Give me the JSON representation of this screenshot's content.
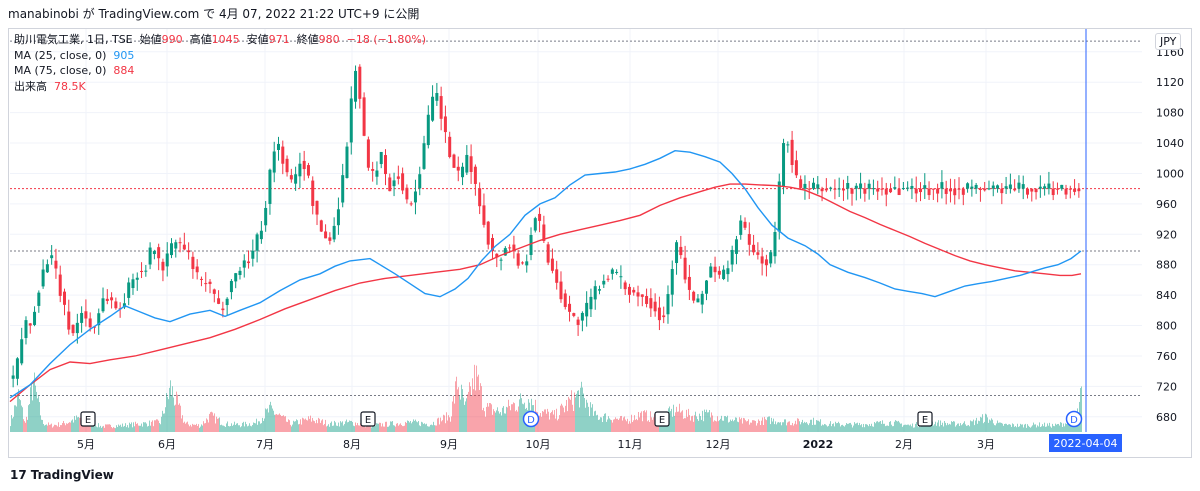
{
  "header": {
    "attribution": "manabinobi が TradingView.com で 4月 07, 2022 21:22 UTC+9 に公開"
  },
  "legend": {
    "symbol": "助川電気工業, 1日, TSE",
    "open_label": "始値",
    "open": "990",
    "high_label": "高値",
    "high": "1045",
    "low_label": "安値",
    "low": "971",
    "close_label": "終値",
    "close": "980",
    "change": "−18 (−1.80%)",
    "ma25_label": "MA (25, close, 0)",
    "ma25_value": "905",
    "ma75_label": "MA (75, close, 0)",
    "ma75_value": "884",
    "volume_label": "出来高",
    "volume_value": "78.5K"
  },
  "currency": "JPY",
  "footer": {
    "brand": "TradingView"
  },
  "colors": {
    "up": "#089981",
    "down": "#f23645",
    "ma25": "#2196f3",
    "ma75": "#f23645",
    "crosshair": "#2962ff",
    "grid": "#f0f3fa"
  },
  "chart_data": {
    "type": "candlestick",
    "ylim": [
      660,
      1190
    ],
    "y_ticks": [
      680,
      720,
      760,
      800,
      840,
      880,
      920,
      960,
      1000,
      1040,
      1080,
      1120,
      1160
    ],
    "x_labels": [
      "5月",
      "6月",
      "7月",
      "8月",
      "9月",
      "10月",
      "11月",
      "12月",
      "2022",
      "2月",
      "3月"
    ],
    "cursor_date": "2022-04-04",
    "reference_lines": [
      1174,
      980,
      898,
      708
    ],
    "event_markers": [
      {
        "label": "E",
        "kind": "earnings"
      },
      {
        "label": "E",
        "kind": "earnings"
      },
      {
        "label": "D",
        "kind": "dividend"
      },
      {
        "label": "E",
        "kind": "earnings"
      },
      {
        "label": "E",
        "kind": "earnings"
      },
      {
        "label": "D",
        "kind": "dividend"
      }
    ],
    "price_anchors": [
      [
        0,
        730
      ],
      [
        4,
        748
      ],
      [
        8,
        780
      ],
      [
        12,
        805
      ],
      [
        16,
        795
      ],
      [
        20,
        815
      ],
      [
        24,
        845
      ],
      [
        28,
        860
      ],
      [
        32,
        880
      ],
      [
        36,
        895
      ],
      [
        40,
        880
      ],
      [
        44,
        862
      ],
      [
        48,
        840
      ],
      [
        52,
        815
      ],
      [
        56,
        800
      ],
      [
        60,
        790
      ],
      [
        64,
        802
      ],
      [
        68,
        820
      ],
      [
        72,
        812
      ],
      [
        76,
        800
      ],
      [
        80,
        795
      ],
      [
        84,
        810
      ],
      [
        88,
        830
      ],
      [
        92,
        840
      ],
      [
        96,
        835
      ],
      [
        100,
        830
      ],
      [
        104,
        820
      ],
      [
        108,
        825
      ],
      [
        112,
        838
      ],
      [
        116,
        850
      ],
      [
        120,
        860
      ],
      [
        124,
        872
      ],
      [
        128,
        870
      ],
      [
        132,
        878
      ],
      [
        136,
        888
      ],
      [
        140,
        908
      ],
      [
        144,
        895
      ],
      [
        148,
        870
      ],
      [
        152,
        885
      ],
      [
        156,
        898
      ],
      [
        160,
        903
      ],
      [
        164,
        912
      ],
      [
        168,
        905
      ],
      [
        172,
        898
      ],
      [
        176,
        890
      ],
      [
        180,
        878
      ],
      [
        184,
        862
      ],
      [
        188,
        855
      ],
      [
        192,
        860
      ],
      [
        196,
        850
      ],
      [
        200,
        842
      ],
      [
        204,
        826
      ],
      [
        208,
        818
      ],
      [
        212,
        835
      ],
      [
        216,
        850
      ],
      [
        220,
        862
      ],
      [
        224,
        868
      ],
      [
        228,
        878
      ],
      [
        232,
        885
      ],
      [
        236,
        888
      ],
      [
        240,
        898
      ],
      [
        244,
        912
      ],
      [
        248,
        928
      ],
      [
        252,
        950
      ],
      [
        256,
        990
      ],
      [
        260,
        1025
      ],
      [
        264,
        1040
      ],
      [
        268,
        1030
      ],
      [
        272,
        1010
      ],
      [
        276,
        990
      ],
      [
        280,
        985
      ],
      [
        284,
        1000
      ],
      [
        288,
        1020
      ],
      [
        292,
        1010
      ],
      [
        296,
        990
      ],
      [
        300,
        965
      ],
      [
        304,
        940
      ],
      [
        308,
        925
      ],
      [
        312,
        918
      ],
      [
        316,
        910
      ],
      [
        320,
        920
      ],
      [
        324,
        950
      ],
      [
        328,
        975
      ],
      [
        332,
        1010
      ],
      [
        336,
        1060
      ],
      [
        340,
        1110
      ],
      [
        344,
        1150
      ],
      [
        348,
        1090
      ],
      [
        352,
        1040
      ],
      [
        356,
        1005
      ],
      [
        360,
        995
      ],
      [
        364,
        1010
      ],
      [
        368,
        1030
      ],
      [
        372,
        1000
      ],
      [
        376,
        980
      ],
      [
        380,
        990
      ],
      [
        384,
        1005
      ],
      [
        388,
        995
      ],
      [
        392,
        970
      ],
      [
        396,
        955
      ],
      [
        400,
        965
      ],
      [
        404,
        985
      ],
      [
        408,
        1010
      ],
      [
        412,
        1040
      ],
      [
        416,
        1070
      ],
      [
        420,
        1095
      ],
      [
        424,
        1105
      ],
      [
        428,
        1080
      ],
      [
        432,
        1055
      ],
      [
        436,
        1030
      ],
      [
        440,
        1015
      ],
      [
        444,
        1000
      ],
      [
        448,
        990
      ],
      [
        452,
        1010
      ],
      [
        456,
        1030
      ],
      [
        460,
        1000
      ],
      [
        464,
        975
      ],
      [
        468,
        955
      ],
      [
        472,
        935
      ],
      [
        476,
        915
      ],
      [
        480,
        895
      ],
      [
        484,
        885
      ],
      [
        488,
        890
      ],
      [
        492,
        900
      ],
      [
        496,
        910
      ],
      [
        500,
        900
      ],
      [
        504,
        888
      ],
      [
        508,
        878
      ],
      [
        512,
        880
      ],
      [
        516,
        900
      ],
      [
        520,
        935
      ],
      [
        524,
        950
      ],
      [
        528,
        930
      ],
      [
        532,
        905
      ],
      [
        536,
        888
      ],
      [
        540,
        875
      ],
      [
        544,
        860
      ],
      [
        548,
        845
      ],
      [
        552,
        832
      ],
      [
        556,
        820
      ],
      [
        560,
        810
      ],
      [
        564,
        805
      ],
      [
        568,
        808
      ],
      [
        572,
        815
      ],
      [
        576,
        825
      ],
      [
        580,
        838
      ],
      [
        584,
        848
      ],
      [
        588,
        855
      ],
      [
        592,
        862
      ],
      [
        596,
        868
      ],
      [
        600,
        870
      ],
      [
        604,
        865
      ],
      [
        608,
        858
      ],
      [
        612,
        852
      ],
      [
        616,
        848
      ],
      [
        620,
        845
      ],
      [
        624,
        842
      ],
      [
        628,
        840
      ],
      [
        632,
        838
      ],
      [
        636,
        835
      ],
      [
        640,
        830
      ],
      [
        644,
        822
      ],
      [
        648,
        812
      ],
      [
        652,
        815
      ],
      [
        656,
        840
      ],
      [
        660,
        880
      ],
      [
        664,
        905
      ],
      [
        668,
        895
      ],
      [
        672,
        870
      ],
      [
        676,
        850
      ],
      [
        680,
        835
      ],
      [
        684,
        825
      ],
      [
        688,
        830
      ],
      [
        692,
        850
      ],
      [
        696,
        870
      ],
      [
        700,
        880
      ],
      [
        704,
        870
      ],
      [
        708,
        860
      ],
      [
        712,
        868
      ],
      [
        716,
        880
      ],
      [
        720,
        892
      ],
      [
        724,
        915
      ],
      [
        728,
        940
      ],
      [
        732,
        925
      ],
      [
        736,
        910
      ],
      [
        740,
        900
      ],
      [
        744,
        892
      ],
      [
        748,
        890
      ],
      [
        752,
        885
      ],
      [
        756,
        880
      ],
      [
        760,
        895
      ],
      [
        764,
        930
      ],
      [
        768,
        990
      ],
      [
        772,
        1040
      ],
      [
        776,
        1045
      ],
      [
        780,
        1020
      ],
      [
        784,
        995
      ],
      [
        788,
        980
      ]
    ],
    "ma25_anchors": [
      [
        0,
        705
      ],
      [
        20,
        722
      ],
      [
        40,
        750
      ],
      [
        60,
        775
      ],
      [
        80,
        795
      ],
      [
        100,
        812
      ],
      [
        115,
        826
      ],
      [
        130,
        818
      ],
      [
        145,
        810
      ],
      [
        160,
        805
      ],
      [
        180,
        815
      ],
      [
        200,
        820
      ],
      [
        215,
        812
      ],
      [
        230,
        820
      ],
      [
        250,
        830
      ],
      [
        270,
        846
      ],
      [
        290,
        860
      ],
      [
        310,
        868
      ],
      [
        325,
        878
      ],
      [
        340,
        885
      ],
      [
        360,
        888
      ],
      [
        370,
        880
      ],
      [
        385,
        868
      ],
      [
        400,
        855
      ],
      [
        415,
        842
      ],
      [
        430,
        838
      ],
      [
        445,
        848
      ],
      [
        458,
        862
      ],
      [
        472,
        886
      ],
      [
        485,
        904
      ],
      [
        500,
        920
      ],
      [
        515,
        945
      ],
      [
        530,
        960
      ],
      [
        545,
        968
      ],
      [
        560,
        985
      ],
      [
        575,
        998
      ],
      [
        590,
        1000
      ],
      [
        605,
        1002
      ],
      [
        620,
        1006
      ],
      [
        635,
        1012
      ],
      [
        650,
        1020
      ],
      [
        665,
        1030
      ],
      [
        680,
        1028
      ],
      [
        695,
        1022
      ],
      [
        710,
        1015
      ],
      [
        722,
        1000
      ],
      [
        735,
        980
      ],
      [
        748,
        955
      ],
      [
        762,
        932
      ],
      [
        778,
        915
      ],
      [
        795,
        905
      ],
      [
        808,
        894
      ],
      [
        820,
        880
      ],
      [
        838,
        870
      ],
      [
        855,
        863
      ],
      [
        870,
        856
      ],
      [
        885,
        848
      ],
      [
        898,
        845
      ],
      [
        912,
        842
      ],
      [
        925,
        838
      ],
      [
        940,
        845
      ],
      [
        955,
        852
      ],
      [
        968,
        855
      ],
      [
        982,
        858
      ],
      [
        996,
        862
      ],
      [
        1010,
        866
      ],
      [
        1025,
        872
      ],
      [
        1035,
        876
      ],
      [
        1048,
        880
      ],
      [
        1061,
        888
      ],
      [
        1071,
        898
      ]
    ],
    "ma75_anchors": [
      [
        0,
        700
      ],
      [
        20,
        722
      ],
      [
        40,
        742
      ],
      [
        60,
        752
      ],
      [
        80,
        750
      ],
      [
        100,
        755
      ],
      [
        125,
        760
      ],
      [
        150,
        768
      ],
      [
        175,
        776
      ],
      [
        200,
        784
      ],
      [
        225,
        795
      ],
      [
        250,
        808
      ],
      [
        275,
        822
      ],
      [
        300,
        834
      ],
      [
        325,
        846
      ],
      [
        350,
        856
      ],
      [
        375,
        862
      ],
      [
        400,
        866
      ],
      [
        425,
        870
      ],
      [
        450,
        874
      ],
      [
        470,
        880
      ],
      [
        490,
        892
      ],
      [
        510,
        902
      ],
      [
        530,
        912
      ],
      [
        550,
        920
      ],
      [
        570,
        926
      ],
      [
        590,
        932
      ],
      [
        610,
        938
      ],
      [
        630,
        945
      ],
      [
        650,
        958
      ],
      [
        670,
        968
      ],
      [
        690,
        976
      ],
      [
        705,
        982
      ],
      [
        720,
        986
      ],
      [
        735,
        986
      ],
      [
        750,
        985
      ],
      [
        765,
        984
      ],
      [
        780,
        982
      ],
      [
        795,
        978
      ],
      [
        810,
        970
      ],
      [
        825,
        960
      ],
      [
        840,
        950
      ],
      [
        855,
        942
      ],
      [
        870,
        933
      ],
      [
        885,
        925
      ],
      [
        900,
        917
      ],
      [
        915,
        908
      ],
      [
        930,
        900
      ],
      [
        945,
        892
      ],
      [
        960,
        885
      ],
      [
        975,
        880
      ],
      [
        990,
        876
      ],
      [
        1005,
        872
      ],
      [
        1020,
        870
      ],
      [
        1035,
        868
      ],
      [
        1050,
        866
      ],
      [
        1062,
        866
      ],
      [
        1071,
        868
      ]
    ],
    "volume_anchors": [
      [
        0,
        0.12
      ],
      [
        8,
        0.45
      ],
      [
        15,
        0.1
      ],
      [
        23,
        0.62
      ],
      [
        32,
        0.12
      ],
      [
        40,
        0.08
      ],
      [
        52,
        0.1
      ],
      [
        70,
        0.18
      ],
      [
        90,
        0.07
      ],
      [
        110,
        0.08
      ],
      [
        130,
        0.1
      ],
      [
        150,
        0.12
      ],
      [
        160,
        0.55
      ],
      [
        175,
        0.1
      ],
      [
        190,
        0.08
      ],
      [
        200,
        0.2
      ],
      [
        215,
        0.1
      ],
      [
        230,
        0.09
      ],
      [
        245,
        0.11
      ],
      [
        260,
        0.28
      ],
      [
        280,
        0.1
      ],
      [
        300,
        0.16
      ],
      [
        320,
        0.1
      ],
      [
        340,
        0.12
      ],
      [
        360,
        0.08
      ],
      [
        380,
        0.1
      ],
      [
        400,
        0.12
      ],
      [
        420,
        0.1
      ],
      [
        440,
        0.2
      ],
      [
        447,
        0.62
      ],
      [
        455,
        0.3
      ],
      [
        465,
        0.7
      ],
      [
        475,
        0.3
      ],
      [
        490,
        0.25
      ],
      [
        505,
        0.35
      ],
      [
        518,
        0.42
      ],
      [
        530,
        0.25
      ],
      [
        545,
        0.2
      ],
      [
        560,
        0.38
      ],
      [
        570,
        0.48
      ],
      [
        585,
        0.2
      ],
      [
        600,
        0.18
      ],
      [
        615,
        0.14
      ],
      [
        630,
        0.22
      ],
      [
        650,
        0.16
      ],
      [
        665,
        0.28
      ],
      [
        680,
        0.2
      ],
      [
        700,
        0.22
      ],
      [
        720,
        0.15
      ],
      [
        740,
        0.12
      ],
      [
        760,
        0.15
      ],
      [
        780,
        0.12
      ],
      [
        800,
        0.14
      ],
      [
        820,
        0.1
      ],
      [
        840,
        0.09
      ],
      [
        860,
        0.1
      ],
      [
        880,
        0.12
      ],
      [
        900,
        0.08
      ],
      [
        920,
        0.12
      ],
      [
        940,
        0.1
      ],
      [
        960,
        0.11
      ],
      [
        975,
        0.18
      ],
      [
        990,
        0.09
      ],
      [
        1010,
        0.08
      ],
      [
        1030,
        0.09
      ],
      [
        1045,
        0.08
      ],
      [
        1058,
        0.12
      ],
      [
        1068,
        0.25
      ],
      [
        1076,
        0.9
      ],
      [
        1082,
        0.28
      ],
      [
        1088,
        0.12
      ]
    ]
  }
}
